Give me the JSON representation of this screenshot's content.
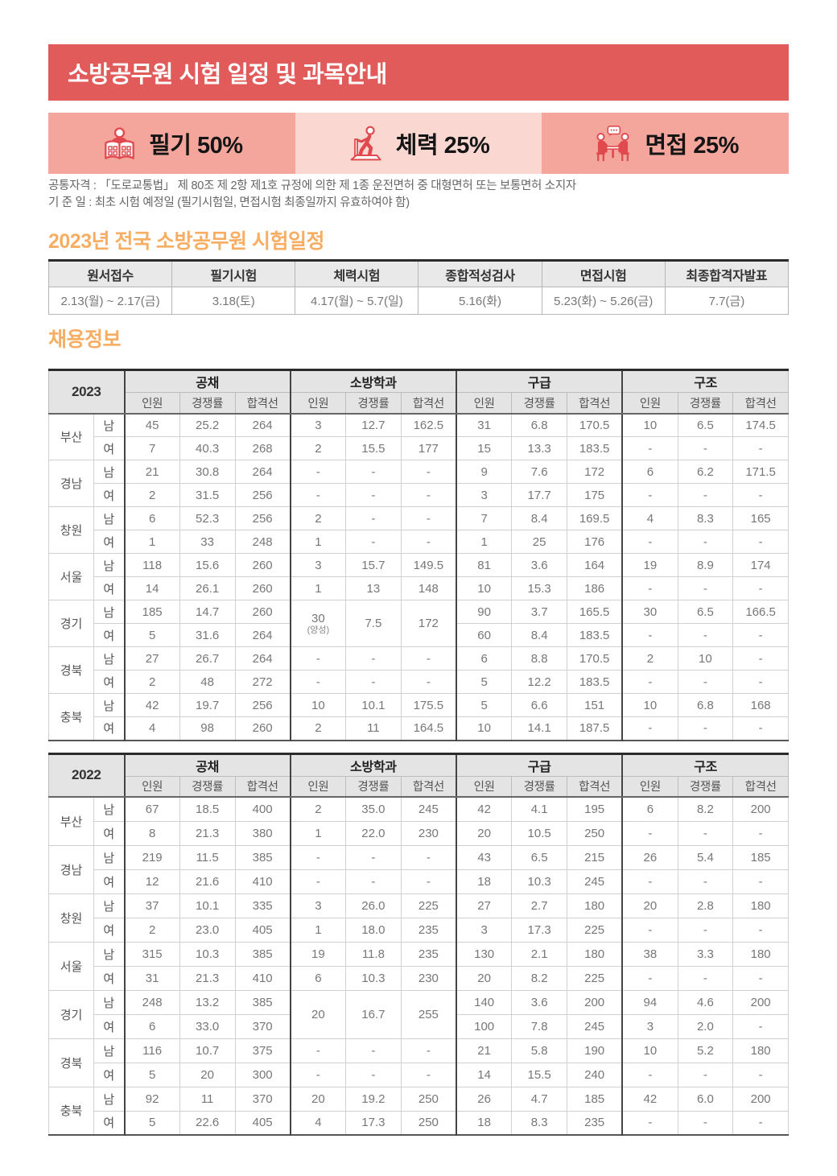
{
  "colors": {
    "banner_red": "#E25B5B",
    "accent_orange": "#F8AE62",
    "icon_red": "#E04A4E"
  },
  "banner": {
    "title": "소방공무원 시험 일정 및 과목안내"
  },
  "weights": [
    {
      "icon": "reading-book-icon",
      "label": "필기 50%",
      "bg": "#F4A69C"
    },
    {
      "icon": "treadmill-runner-icon",
      "label": "체력 25%",
      "bg": "#FAD7D1"
    },
    {
      "icon": "interview-table-icon",
      "label": "면접 25%",
      "bg": "#F4A69C"
    }
  ],
  "notes": [
    "공통자격 :  「도로교통법」 제 80조 제 2항 제1호 규정에 의한 제 1종 운전면허 중 대형면허 또는 보통면허 소지자",
    "기 준 일 :   최초 시험 예정일 (필기시험일, 면접시험 최종일까지 유효하여야 함)"
  ],
  "schedule": {
    "title": "2023년 전국 소방공무원 시험일정",
    "headers": [
      "원서접수",
      "필기시험",
      "체력시험",
      "종합적성검사",
      "면접시험",
      "최종합격자발표"
    ],
    "values": [
      "2.13(월) ~ 2.17(금)",
      "3.18(토)",
      "4.17(월) ~ 5.7(일)",
      "5.16(화)",
      "5.23(화) ~ 5.26(금)",
      "7.7(금)"
    ]
  },
  "recruit": {
    "title": "채용정보",
    "groups": [
      "공채",
      "소방학과",
      "구급",
      "구조"
    ],
    "subheaders": [
      "인원",
      "경쟁률",
      "합격선"
    ],
    "tables": [
      {
        "year": "2023",
        "regions": [
          {
            "region": "부산",
            "rows": [
              {
                "sex": "남",
                "cells": [
                  "45",
                  "25.2",
                  "264",
                  "3",
                  "12.7",
                  "162.5",
                  "31",
                  "6.8",
                  "170.5",
                  "10",
                  "6.5",
                  "174.5"
                ]
              },
              {
                "sex": "여",
                "cells": [
                  "7",
                  "40.3",
                  "268",
                  "2",
                  "15.5",
                  "177",
                  "15",
                  "13.3",
                  "183.5",
                  "-",
                  "-",
                  "-"
                ]
              }
            ]
          },
          {
            "region": "경남",
            "rows": [
              {
                "sex": "남",
                "cells": [
                  "21",
                  "30.8",
                  "264",
                  "-",
                  "-",
                  "-",
                  "9",
                  "7.6",
                  "172",
                  "6",
                  "6.2",
                  "171.5"
                ]
              },
              {
                "sex": "여",
                "cells": [
                  "2",
                  "31.5",
                  "256",
                  "-",
                  "-",
                  "-",
                  "3",
                  "17.7",
                  "175",
                  "-",
                  "-",
                  "-"
                ]
              }
            ]
          },
          {
            "region": "창원",
            "rows": [
              {
                "sex": "남",
                "cells": [
                  "6",
                  "52.3",
                  "256",
                  "2",
                  "-",
                  "-",
                  "7",
                  "8.4",
                  "169.5",
                  "4",
                  "8.3",
                  "165"
                ]
              },
              {
                "sex": "여",
                "cells": [
                  "1",
                  "33",
                  "248",
                  "1",
                  "-",
                  "-",
                  "1",
                  "25",
                  "176",
                  "-",
                  "-",
                  "-"
                ]
              }
            ]
          },
          {
            "region": "서울",
            "rows": [
              {
                "sex": "남",
                "cells": [
                  "118",
                  "15.6",
                  "260",
                  "3",
                  "15.7",
                  "149.5",
                  "81",
                  "3.6",
                  "164",
                  "19",
                  "8.9",
                  "174"
                ]
              },
              {
                "sex": "여",
                "cells": [
                  "14",
                  "26.1",
                  "260",
                  "1",
                  "13",
                  "148",
                  "10",
                  "15.3",
                  "186",
                  "-",
                  "-",
                  "-"
                ]
              }
            ]
          },
          {
            "region": "경기",
            "rows": [
              {
                "sex": "남",
                "cells": [
                  "185",
                  "14.7",
                  "260",
                  {
                    "v": "30",
                    "sub": "(양성)",
                    "rowspan": 2
                  },
                  {
                    "v": "7.5",
                    "rowspan": 2
                  },
                  {
                    "v": "172",
                    "rowspan": 2
                  },
                  "90",
                  "3.7",
                  "165.5",
                  "30",
                  "6.5",
                  "166.5"
                ]
              },
              {
                "sex": "여",
                "cells": [
                  "5",
                  "31.6",
                  "264",
                  null,
                  null,
                  null,
                  "60",
                  "8.4",
                  "183.5",
                  "-",
                  "-",
                  "-"
                ]
              }
            ]
          },
          {
            "region": "경북",
            "rows": [
              {
                "sex": "남",
                "cells": [
                  "27",
                  "26.7",
                  "264",
                  "-",
                  "-",
                  "-",
                  "6",
                  "8.8",
                  "170.5",
                  "2",
                  "10",
                  "-"
                ]
              },
              {
                "sex": "여",
                "cells": [
                  "2",
                  "48",
                  "272",
                  "-",
                  "-",
                  "-",
                  "5",
                  "12.2",
                  "183.5",
                  "-",
                  "-",
                  "-"
                ]
              }
            ]
          },
          {
            "region": "충북",
            "rows": [
              {
                "sex": "남",
                "cells": [
                  "42",
                  "19.7",
                  "256",
                  "10",
                  "10.1",
                  "175.5",
                  "5",
                  "6.6",
                  "151",
                  "10",
                  "6.8",
                  "168"
                ]
              },
              {
                "sex": "여",
                "cells": [
                  "4",
                  "98",
                  "260",
                  "2",
                  "11",
                  "164.5",
                  "10",
                  "14.1",
                  "187.5",
                  "-",
                  "-",
                  "-"
                ]
              }
            ]
          }
        ]
      },
      {
        "year": "2022",
        "regions": [
          {
            "region": "부산",
            "rows": [
              {
                "sex": "남",
                "cells": [
                  "67",
                  "18.5",
                  "400",
                  "2",
                  "35.0",
                  "245",
                  "42",
                  "4.1",
                  "195",
                  "6",
                  "8.2",
                  "200"
                ]
              },
              {
                "sex": "여",
                "cells": [
                  "8",
                  "21.3",
                  "380",
                  "1",
                  "22.0",
                  "230",
                  "20",
                  "10.5",
                  "250",
                  "-",
                  "-",
                  "-"
                ]
              }
            ]
          },
          {
            "region": "경남",
            "rows": [
              {
                "sex": "남",
                "cells": [
                  "219",
                  "11.5",
                  "385",
                  "-",
                  "-",
                  "-",
                  "43",
                  "6.5",
                  "215",
                  "26",
                  "5.4",
                  "185"
                ]
              },
              {
                "sex": "여",
                "cells": [
                  "12",
                  "21.6",
                  "410",
                  "-",
                  "-",
                  "-",
                  "18",
                  "10.3",
                  "245",
                  "-",
                  "-",
                  "-"
                ]
              }
            ]
          },
          {
            "region": "창원",
            "rows": [
              {
                "sex": "남",
                "cells": [
                  "37",
                  "10.1",
                  "335",
                  "3",
                  "26.0",
                  "225",
                  "27",
                  "2.7",
                  "180",
                  "20",
                  "2.8",
                  "180"
                ]
              },
              {
                "sex": "여",
                "cells": [
                  "2",
                  "23.0",
                  "405",
                  "1",
                  "18.0",
                  "235",
                  "3",
                  "17.3",
                  "225",
                  "-",
                  "-",
                  "-"
                ]
              }
            ]
          },
          {
            "region": "서울",
            "rows": [
              {
                "sex": "남",
                "cells": [
                  "315",
                  "10.3",
                  "385",
                  "19",
                  "11.8",
                  "235",
                  "130",
                  "2.1",
                  "180",
                  "38",
                  "3.3",
                  "180"
                ]
              },
              {
                "sex": "여",
                "cells": [
                  "31",
                  "21.3",
                  "410",
                  "6",
                  "10.3",
                  "230",
                  "20",
                  "8.2",
                  "225",
                  "-",
                  "-",
                  "-"
                ]
              }
            ]
          },
          {
            "region": "경기",
            "rows": [
              {
                "sex": "남",
                "cells": [
                  "248",
                  "13.2",
                  "385",
                  {
                    "v": "20",
                    "rowspan": 2
                  },
                  {
                    "v": "16.7",
                    "rowspan": 2
                  },
                  {
                    "v": "255",
                    "rowspan": 2
                  },
                  "140",
                  "3.6",
                  "200",
                  "94",
                  "4.6",
                  "200"
                ]
              },
              {
                "sex": "여",
                "cells": [
                  "6",
                  "33.0",
                  "370",
                  null,
                  null,
                  null,
                  "100",
                  "7.8",
                  "245",
                  "3",
                  "2.0",
                  "-"
                ]
              }
            ]
          },
          {
            "region": "경북",
            "rows": [
              {
                "sex": "남",
                "cells": [
                  "116",
                  "10.7",
                  "375",
                  "-",
                  "-",
                  "-",
                  "21",
                  "5.8",
                  "190",
                  "10",
                  "5.2",
                  "180"
                ]
              },
              {
                "sex": "여",
                "cells": [
                  "5",
                  "20",
                  "300",
                  "-",
                  "-",
                  "-",
                  "14",
                  "15.5",
                  "240",
                  "-",
                  "-",
                  "-"
                ]
              }
            ]
          },
          {
            "region": "충북",
            "rows": [
              {
                "sex": "남",
                "cells": [
                  "92",
                  "11",
                  "370",
                  "20",
                  "19.2",
                  "250",
                  "26",
                  "4.7",
                  "185",
                  "42",
                  "6.0",
                  "200"
                ]
              },
              {
                "sex": "여",
                "cells": [
                  "5",
                  "22.6",
                  "405",
                  "4",
                  "17.3",
                  "250",
                  "18",
                  "8.3",
                  "235",
                  "-",
                  "-",
                  "-"
                ]
              }
            ]
          }
        ]
      }
    ]
  }
}
